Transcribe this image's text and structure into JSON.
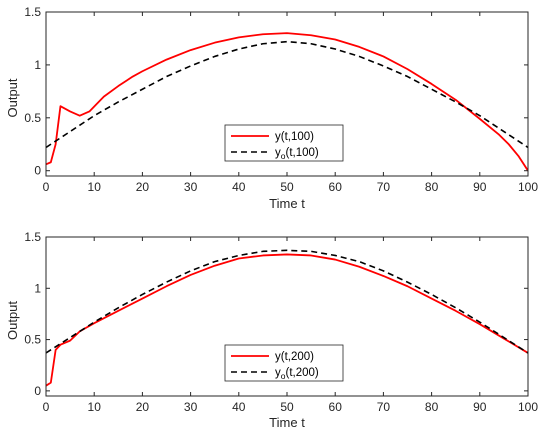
{
  "chart_data": [
    {
      "type": "line",
      "xlabel": "Time t",
      "ylabel": "Output",
      "xlim": [
        0,
        100
      ],
      "ylim": [
        -0.05,
        1.5
      ],
      "xticks": [
        0,
        10,
        20,
        30,
        40,
        50,
        60,
        70,
        80,
        90,
        100
      ],
      "yticks": [
        0,
        0.5,
        1,
        1.5
      ],
      "ytick_labels": [
        "0",
        "0.5",
        "1",
        "1.5"
      ],
      "legend_position": "lower-center",
      "series": [
        {
          "name": "y(t,100)",
          "legend_main": "y(t,100)",
          "legend_sub": "",
          "legend_rest": "",
          "color": "#ff0000",
          "style": "solid",
          "x": [
            0,
            1,
            2,
            3,
            5,
            7,
            9,
            12,
            15,
            18,
            20,
            25,
            30,
            35,
            40,
            45,
            50,
            55,
            60,
            65,
            70,
            75,
            80,
            85,
            90,
            94,
            96,
            98,
            100
          ],
          "y": [
            0.06,
            0.08,
            0.25,
            0.61,
            0.56,
            0.52,
            0.56,
            0.7,
            0.8,
            0.89,
            0.94,
            1.05,
            1.14,
            1.21,
            1.26,
            1.29,
            1.3,
            1.28,
            1.24,
            1.17,
            1.08,
            0.96,
            0.82,
            0.67,
            0.49,
            0.34,
            0.25,
            0.14,
            0.0
          ]
        },
        {
          "name": "yo(t,100)",
          "legend_main": "y",
          "legend_sub": "o",
          "legend_rest": "(t,100)",
          "color": "#000000",
          "style": "dashed",
          "x": [
            0,
            5,
            10,
            15,
            20,
            25,
            30,
            35,
            40,
            45,
            50,
            55,
            60,
            65,
            70,
            75,
            80,
            85,
            90,
            95,
            100
          ],
          "y": [
            0.22,
            0.37,
            0.52,
            0.65,
            0.77,
            0.89,
            0.99,
            1.08,
            1.15,
            1.2,
            1.22,
            1.2,
            1.15,
            1.08,
            0.99,
            0.89,
            0.77,
            0.65,
            0.52,
            0.37,
            0.22
          ]
        }
      ]
    },
    {
      "type": "line",
      "xlabel": "Time t",
      "ylabel": "Output",
      "xlim": [
        0,
        100
      ],
      "ylim": [
        -0.05,
        1.5
      ],
      "xticks": [
        0,
        10,
        20,
        30,
        40,
        50,
        60,
        70,
        80,
        90,
        100
      ],
      "yticks": [
        0,
        0.5,
        1,
        1.5
      ],
      "ytick_labels": [
        "0",
        "0.5",
        "1",
        "1.5"
      ],
      "legend_position": "lower-center",
      "series": [
        {
          "name": "y(t,200)",
          "legend_main": "y(t,200)",
          "legend_sub": "",
          "legend_rest": "",
          "color": "#ff0000",
          "style": "solid",
          "x": [
            0,
            1,
            2,
            3,
            5,
            7,
            10,
            15,
            20,
            25,
            30,
            35,
            40,
            45,
            50,
            55,
            60,
            65,
            70,
            75,
            80,
            85,
            90,
            95,
            100
          ],
          "y": [
            0.05,
            0.08,
            0.4,
            0.45,
            0.49,
            0.58,
            0.66,
            0.78,
            0.9,
            1.02,
            1.13,
            1.22,
            1.29,
            1.32,
            1.33,
            1.32,
            1.28,
            1.21,
            1.12,
            1.02,
            0.9,
            0.78,
            0.65,
            0.51,
            0.37
          ]
        },
        {
          "name": "yo(t,200)",
          "legend_main": "y",
          "legend_sub": "o",
          "legend_rest": "(t,200)",
          "color": "#000000",
          "style": "dashed",
          "x": [
            0,
            5,
            10,
            15,
            20,
            25,
            30,
            35,
            40,
            45,
            50,
            55,
            60,
            65,
            70,
            75,
            80,
            85,
            90,
            95,
            100
          ],
          "y": [
            0.37,
            0.52,
            0.67,
            0.81,
            0.94,
            1.06,
            1.17,
            1.26,
            1.32,
            1.36,
            1.37,
            1.36,
            1.32,
            1.26,
            1.17,
            1.06,
            0.94,
            0.81,
            0.67,
            0.52,
            0.37
          ]
        }
      ]
    }
  ]
}
